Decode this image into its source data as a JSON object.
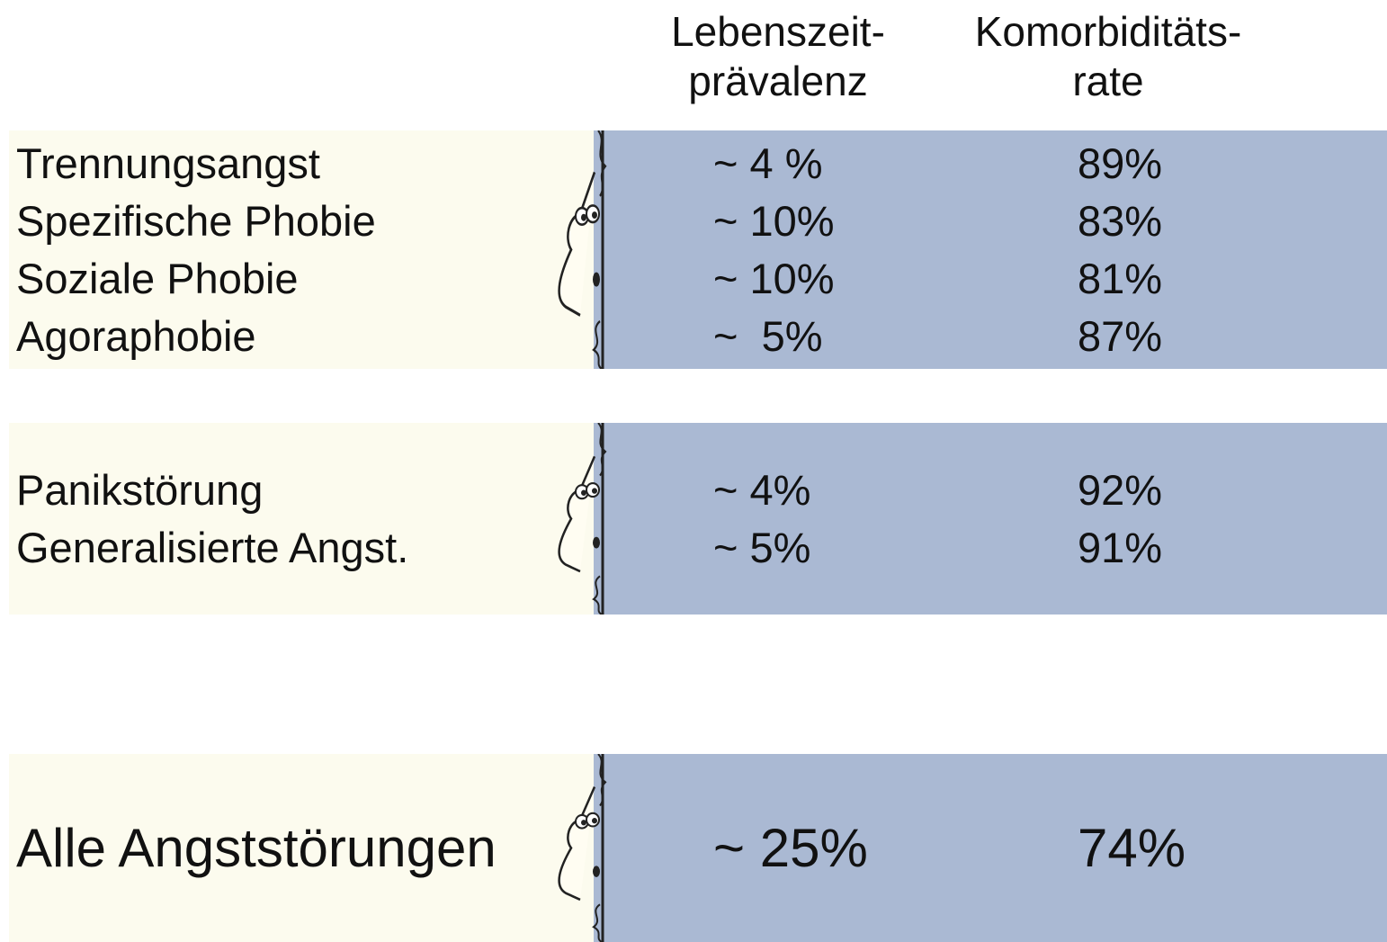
{
  "header": {
    "columns": [
      {
        "lines": [
          "Lebenszeit-",
          "prävalenz"
        ]
      },
      {
        "lines": [
          "Komorbiditäts-",
          "rate"
        ]
      }
    ]
  },
  "groups": [
    {
      "rows": [
        {
          "label": "Trennungsangst",
          "prevalence": "~ 4 %",
          "comorbidity": "89%"
        },
        {
          "label": "Spezifische Phobie",
          "prevalence": "~ 10%",
          "comorbidity": "83%"
        },
        {
          "label": "Soziale Phobie",
          "prevalence": "~ 10%",
          "comorbidity": "81%"
        },
        {
          "label": "Agoraphobie",
          "prevalence": "~  5%",
          "comorbidity": "87%"
        }
      ]
    },
    {
      "rows": [
        {
          "label": "Panikstörung",
          "prevalence": "~ 4%",
          "comorbidity": "92%"
        },
        {
          "label": "Generalisierte Angst.",
          "prevalence": "~ 5%",
          "comorbidity": "91%"
        }
      ]
    },
    {
      "rows": [
        {
          "label": "Alle Angststörungen",
          "prevalence": "~ 25%",
          "comorbidity": "74%"
        }
      ]
    }
  ]
}
